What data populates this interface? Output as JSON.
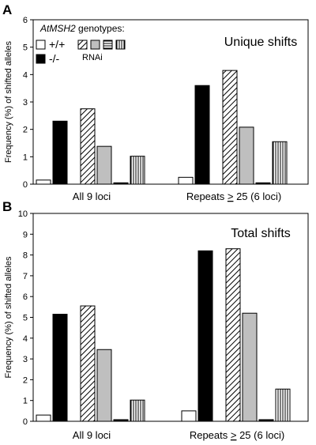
{
  "chart_data": [
    {
      "type": "bar",
      "panel_label": "A",
      "panel_title": "Unique shifts",
      "ylabel": "Frequency (%) of shifted alleles",
      "ylim": [
        0,
        6
      ],
      "yticks": [
        0,
        1,
        2,
        3,
        4,
        5,
        6
      ],
      "grid": false,
      "categories": [
        "All 9 loci",
        "Repeats > 25 (6 loci)"
      ],
      "series": [
        {
          "name": "+/+",
          "pattern": "white",
          "values": [
            0.15,
            0.25
          ]
        },
        {
          "name": "-/-",
          "pattern": "black",
          "values": [
            2.3,
            3.6
          ]
        },
        {
          "name": "",
          "pattern": "diagonal",
          "values": [
            2.75,
            4.15
          ]
        },
        {
          "name": "",
          "pattern": "gray",
          "values": [
            1.38,
            2.08
          ]
        },
        {
          "name": "",
          "pattern": "horizontal",
          "values": [
            0.05,
            0.05
          ]
        },
        {
          "name": "",
          "pattern": "vertical",
          "values": [
            1.02,
            1.55
          ]
        }
      ],
      "legend": {
        "title_italic": "AtMSH2",
        "title_rest": " genotypes:",
        "group_label": "RNAi",
        "placement": "top-left"
      }
    },
    {
      "type": "bar",
      "panel_label": "B",
      "panel_title": "Total shifts",
      "ylabel": "Frequency (%) of shifted alleles",
      "ylim": [
        0,
        10
      ],
      "yticks": [
        0,
        1,
        2,
        3,
        4,
        5,
        6,
        7,
        8,
        9,
        10
      ],
      "grid": false,
      "categories": [
        "All 9 loci",
        "Repeats > 25 (6 loci)"
      ],
      "series": [
        {
          "name": "+/+",
          "pattern": "white",
          "values": [
            0.3,
            0.5
          ]
        },
        {
          "name": "-/-",
          "pattern": "black",
          "values": [
            5.15,
            8.2
          ]
        },
        {
          "name": "",
          "pattern": "diagonal",
          "values": [
            5.55,
            8.3
          ]
        },
        {
          "name": "",
          "pattern": "gray",
          "values": [
            3.45,
            5.2
          ]
        },
        {
          "name": "",
          "pattern": "horizontal",
          "values": [
            0.08,
            0.08
          ]
        },
        {
          "name": "",
          "pattern": "vertical",
          "values": [
            1.02,
            1.55
          ]
        }
      ]
    }
  ]
}
